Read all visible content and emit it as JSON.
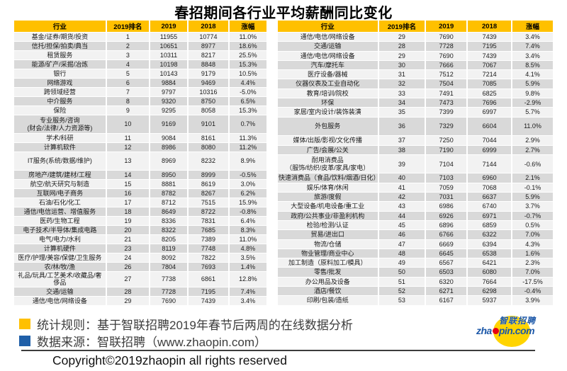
{
  "title": "春招期间各行业平均薪酬同比变化",
  "table": {
    "headers": [
      "行业",
      "2019排名",
      "2019",
      "2018",
      "涨幅"
    ],
    "left_rows": [
      {
        "industry": "基金/证券/期货/投资",
        "rank": "1",
        "y2019": "11955",
        "y2018": "10774",
        "change": "11.0%"
      },
      {
        "industry": "信托/担保/拍卖/典当",
        "rank": "2",
        "y2019": "10651",
        "y2018": "8977",
        "change": "18.6%"
      },
      {
        "industry": "租赁服务",
        "rank": "3",
        "y2019": "10311",
        "y2018": "8217",
        "change": "25.5%"
      },
      {
        "industry": "能源/矿产/采掘/冶炼",
        "rank": "4",
        "y2019": "10198",
        "y2018": "8848",
        "change": "15.3%"
      },
      {
        "industry": "银行",
        "rank": "5",
        "y2019": "10143",
        "y2018": "9179",
        "change": "10.5%"
      },
      {
        "industry": "网络游戏",
        "rank": "6",
        "y2019": "9884",
        "y2018": "9469",
        "change": "4.4%"
      },
      {
        "industry": "跨领域经营",
        "rank": "7",
        "y2019": "9797",
        "y2018": "10316",
        "change": "-5.0%"
      },
      {
        "industry": "中介服务",
        "rank": "8",
        "y2019": "9320",
        "y2018": "8750",
        "change": "6.5%"
      },
      {
        "industry": "保险",
        "rank": "9",
        "y2019": "9295",
        "y2018": "8058",
        "change": "15.3%"
      },
      {
        "industry": "专业服务/咨询\n(财会/法律/人力资源等)",
        "rank": "10",
        "y2019": "9169",
        "y2018": "9101",
        "change": "0.7%",
        "tall": true
      },
      {
        "industry": "学术/科研",
        "rank": "11",
        "y2019": "9084",
        "y2018": "8161",
        "change": "11.3%"
      },
      {
        "industry": "计算机软件",
        "rank": "12",
        "y2019": "8986",
        "y2018": "8080",
        "change": "11.2%"
      },
      {
        "industry": "IT服务(系统/数据/维护)",
        "rank": "13",
        "y2019": "8969",
        "y2018": "8232",
        "change": "8.9%",
        "tall": true
      },
      {
        "industry": "房地产/建筑/建材/工程",
        "rank": "14",
        "y2019": "8950",
        "y2018": "8999",
        "change": "-0.5%"
      },
      {
        "industry": "航空/航天研究与制造",
        "rank": "15",
        "y2019": "8881",
        "y2018": "8619",
        "change": "3.0%"
      },
      {
        "industry": "互联网/电子商务",
        "rank": "16",
        "y2019": "8782",
        "y2018": "8267",
        "change": "6.2%"
      },
      {
        "industry": "石油/石化/化工",
        "rank": "17",
        "y2019": "8712",
        "y2018": "7515",
        "change": "15.9%"
      },
      {
        "industry": "通信/电信运营、增值服务",
        "rank": "18",
        "y2019": "8649",
        "y2018": "8722",
        "change": "-0.8%"
      },
      {
        "industry": "医药/生物工程",
        "rank": "19",
        "y2019": "8336",
        "y2018": "7831",
        "change": "6.4%"
      },
      {
        "industry": "电子技术/半导体/集成电路",
        "rank": "20",
        "y2019": "8322",
        "y2018": "7685",
        "change": "8.3%"
      },
      {
        "industry": "电气/电力/水利",
        "rank": "21",
        "y2019": "8205",
        "y2018": "7389",
        "change": "11.0%"
      },
      {
        "industry": "计算机硬件",
        "rank": "23",
        "y2019": "8119",
        "y2018": "7748",
        "change": "4.8%"
      },
      {
        "industry": "医疗/护理/美容/保健/卫生服务",
        "rank": "24",
        "y2019": "8092",
        "y2018": "7822",
        "change": "3.5%"
      },
      {
        "industry": "农/林/牧/渔",
        "rank": "26",
        "y2019": "7804",
        "y2018": "7693",
        "change": "1.4%"
      },
      {
        "industry": "礼品/玩具/工艺美术/收藏品/奢侈品",
        "rank": "27",
        "y2019": "7738",
        "y2018": "6861",
        "change": "12.8%"
      },
      {
        "industry": "交通/运输",
        "rank": "28",
        "y2019": "7728",
        "y2018": "7195",
        "change": "7.4%"
      },
      {
        "industry": "通信/电信/网络设备",
        "rank": "29",
        "y2019": "7690",
        "y2018": "7439",
        "change": "3.4%"
      }
    ],
    "right_rows": [
      {
        "industry": "通信/电信/网络设备",
        "rank": "29",
        "y2019": "7690",
        "y2018": "7439",
        "change": "3.4%"
      },
      {
        "industry": "交通/运输",
        "rank": "28",
        "y2019": "7728",
        "y2018": "7195",
        "change": "7.4%"
      },
      {
        "industry": "通信/电信/网络设备",
        "rank": "29",
        "y2019": "7690",
        "y2018": "7439",
        "change": "3.4%"
      },
      {
        "industry": "汽车/摩托车",
        "rank": "30",
        "y2019": "7666",
        "y2018": "7067",
        "change": "8.5%"
      },
      {
        "industry": "医疗设备/器械",
        "rank": "31",
        "y2019": "7512",
        "y2018": "7214",
        "change": "4.1%"
      },
      {
        "industry": "仪器仪表及工业自动化",
        "rank": "32",
        "y2019": "7504",
        "y2018": "7085",
        "change": "5.9%"
      },
      {
        "industry": "教育/培训/院校",
        "rank": "33",
        "y2019": "7491",
        "y2018": "6825",
        "change": "9.8%"
      },
      {
        "industry": "环保",
        "rank": "34",
        "y2019": "7473",
        "y2018": "7696",
        "change": "-2.9%"
      },
      {
        "industry": "家居/室内设计/装饰装潢",
        "rank": "35",
        "y2019": "7399",
        "y2018": "6997",
        "change": "5.7%"
      },
      {
        "industry": "外包服务",
        "rank": "36",
        "y2019": "7329",
        "y2018": "6604",
        "change": "11.0%",
        "tall": true
      },
      {
        "industry": "媒体/出版/影视/文化传播",
        "rank": "37",
        "y2019": "7250",
        "y2018": "7044",
        "change": "2.9%"
      },
      {
        "industry": "广告/会展/公关",
        "rank": "38",
        "y2019": "7190",
        "y2018": "6999",
        "change": "2.7%"
      },
      {
        "industry": "耐用消费品\n（服饰/纺织/皮革/家具/家电）",
        "rank": "39",
        "y2019": "7104",
        "y2018": "7144",
        "change": "-0.6%",
        "tall": true
      },
      {
        "industry": "快速消费品（食品/饮料/烟酒/日化）",
        "rank": "40",
        "y2019": "7103",
        "y2018": "6960",
        "change": "2.1%"
      },
      {
        "industry": "娱乐/体育/休闲",
        "rank": "41",
        "y2019": "7059",
        "y2018": "7068",
        "change": "-0.1%"
      },
      {
        "industry": "旅游/度假",
        "rank": "42",
        "y2019": "7031",
        "y2018": "6637",
        "change": "5.9%"
      },
      {
        "industry": "大型设备/机电设备/重工业",
        "rank": "43",
        "y2019": "6986",
        "y2018": "6740",
        "change": "3.7%"
      },
      {
        "industry": "政府/公共事业/非盈利机构",
        "rank": "44",
        "y2019": "6926",
        "y2018": "6971",
        "change": "-0.7%"
      },
      {
        "industry": "检验/检测/认证",
        "rank": "45",
        "y2019": "6896",
        "y2018": "6859",
        "change": "0.5%"
      },
      {
        "industry": "贸易/进出口",
        "rank": "46",
        "y2019": "6766",
        "y2018": "6322",
        "change": "7.0%"
      },
      {
        "industry": "物流/仓储",
        "rank": "47",
        "y2019": "6669",
        "y2018": "6394",
        "change": "4.3%"
      },
      {
        "industry": "物业管理/商业中心",
        "rank": "48",
        "y2019": "6645",
        "y2018": "6538",
        "change": "1.6%"
      },
      {
        "industry": "加工制造（原料加工/模具）",
        "rank": "49",
        "y2019": "6567",
        "y2018": "6421",
        "change": "2.3%"
      },
      {
        "industry": "零售/批发",
        "rank": "50",
        "y2019": "6503",
        "y2018": "6080",
        "change": "7.0%"
      },
      {
        "industry": "办公用品及设备",
        "rank": "51",
        "y2019": "6320",
        "y2018": "7664",
        "change": "-17.5%"
      },
      {
        "industry": "酒店/餐饮",
        "rank": "52",
        "y2019": "6271",
        "y2018": "6298",
        "change": "-0.4%"
      },
      {
        "industry": "印刷/包装/造纸",
        "rank": "53",
        "y2019": "6167",
        "y2018": "5937",
        "change": "3.9%"
      }
    ]
  },
  "footer": {
    "rule_label": "统计规则：基于智联招聘2019年春节后两周的在线数据分析",
    "source_label": "数据来源：智联招聘（www.zhaopin.com）",
    "copyright": "Copyright©2019zhaopin all rights reserved",
    "logo": {
      "zh": "智联招聘",
      "en_pre": "zha",
      "en_post": "pin.com"
    }
  },
  "colors": {
    "header_bg": "#FFC000",
    "row_odd": "#F2F2F2",
    "row_even": "#D9D9D9",
    "bullet_yellow": "#FFC000",
    "bullet_blue": "#1F5FA8",
    "logo_blue": "#1B57A8",
    "logo_yellow": "#FFD400",
    "logo_red": "#E60012"
  }
}
